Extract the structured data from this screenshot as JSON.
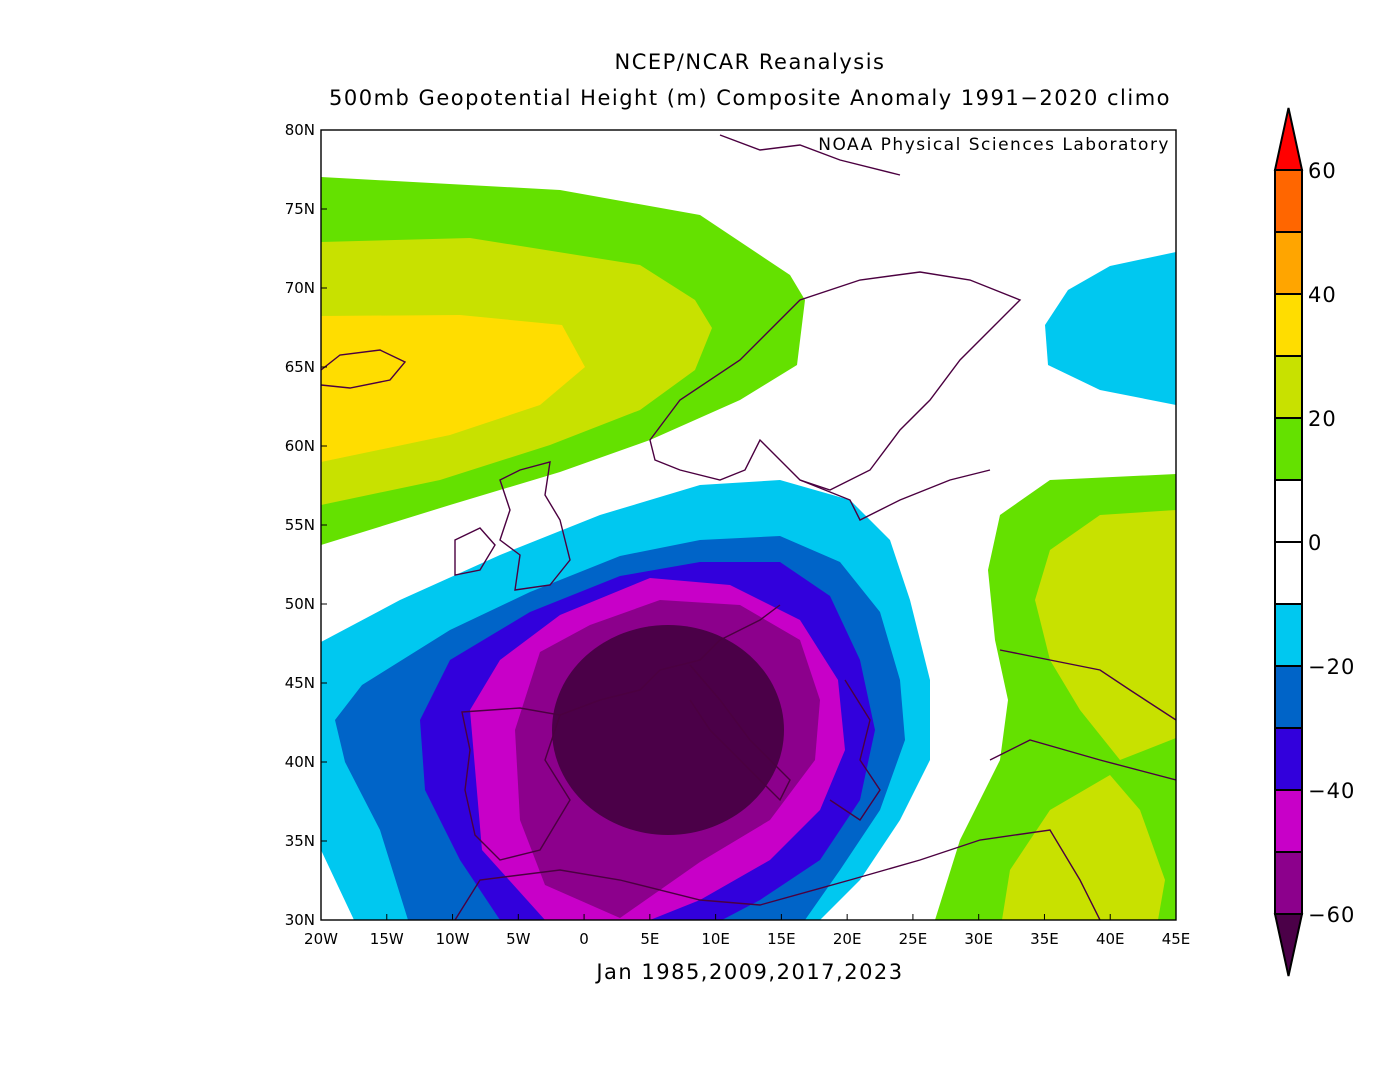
{
  "header": {
    "title": "NCEP/NCAR Reanalysis",
    "subtitle": "500mb Geopotential Height (m) Composite Anomaly 1991−2020 climo"
  },
  "credit": "NOAA Physical Sciences Laboratory",
  "footer": "Jan 1985,2009,2017,2023",
  "map_data": {
    "type": "filled-contour",
    "variable": "500mb Geopotential Height anomaly (m)",
    "lon_range": [
      -20,
      45
    ],
    "lat_range": [
      30,
      80
    ],
    "x_ticks": [
      "20W",
      "15W",
      "10W",
      "5W",
      "0",
      "5E",
      "10E",
      "15E",
      "20E",
      "25E",
      "30E",
      "35E",
      "40E",
      "45E"
    ],
    "y_ticks": [
      "30N",
      "35N",
      "40N",
      "45N",
      "50N",
      "55N",
      "60N",
      "65N",
      "70N",
      "75N",
      "80N"
    ],
    "minimum_center": {
      "lon": 7,
      "lat": 42,
      "value": "< -60"
    },
    "maximum_center": {
      "lon": -16,
      "lat": 65,
      "value": "30 to 40"
    }
  },
  "colorbar": {
    "labels": [
      "60",
      "40",
      "20",
      "0",
      "−20",
      "−40",
      "−60"
    ],
    "levels": [
      -60,
      -50,
      -40,
      -30,
      -20,
      -10,
      0,
      10,
      20,
      30,
      40,
      50,
      60
    ],
    "colors_top_to_bottom": [
      "#ff0000",
      "#ff6600",
      "#ffa500",
      "#ffdd00",
      "#c8e100",
      "#64e100",
      "#ffffff",
      "#ffffff",
      "#00c8f0",
      "#0064c8",
      "#3200dc",
      "#c800c8",
      "#8c008c",
      "#4b0048"
    ]
  }
}
